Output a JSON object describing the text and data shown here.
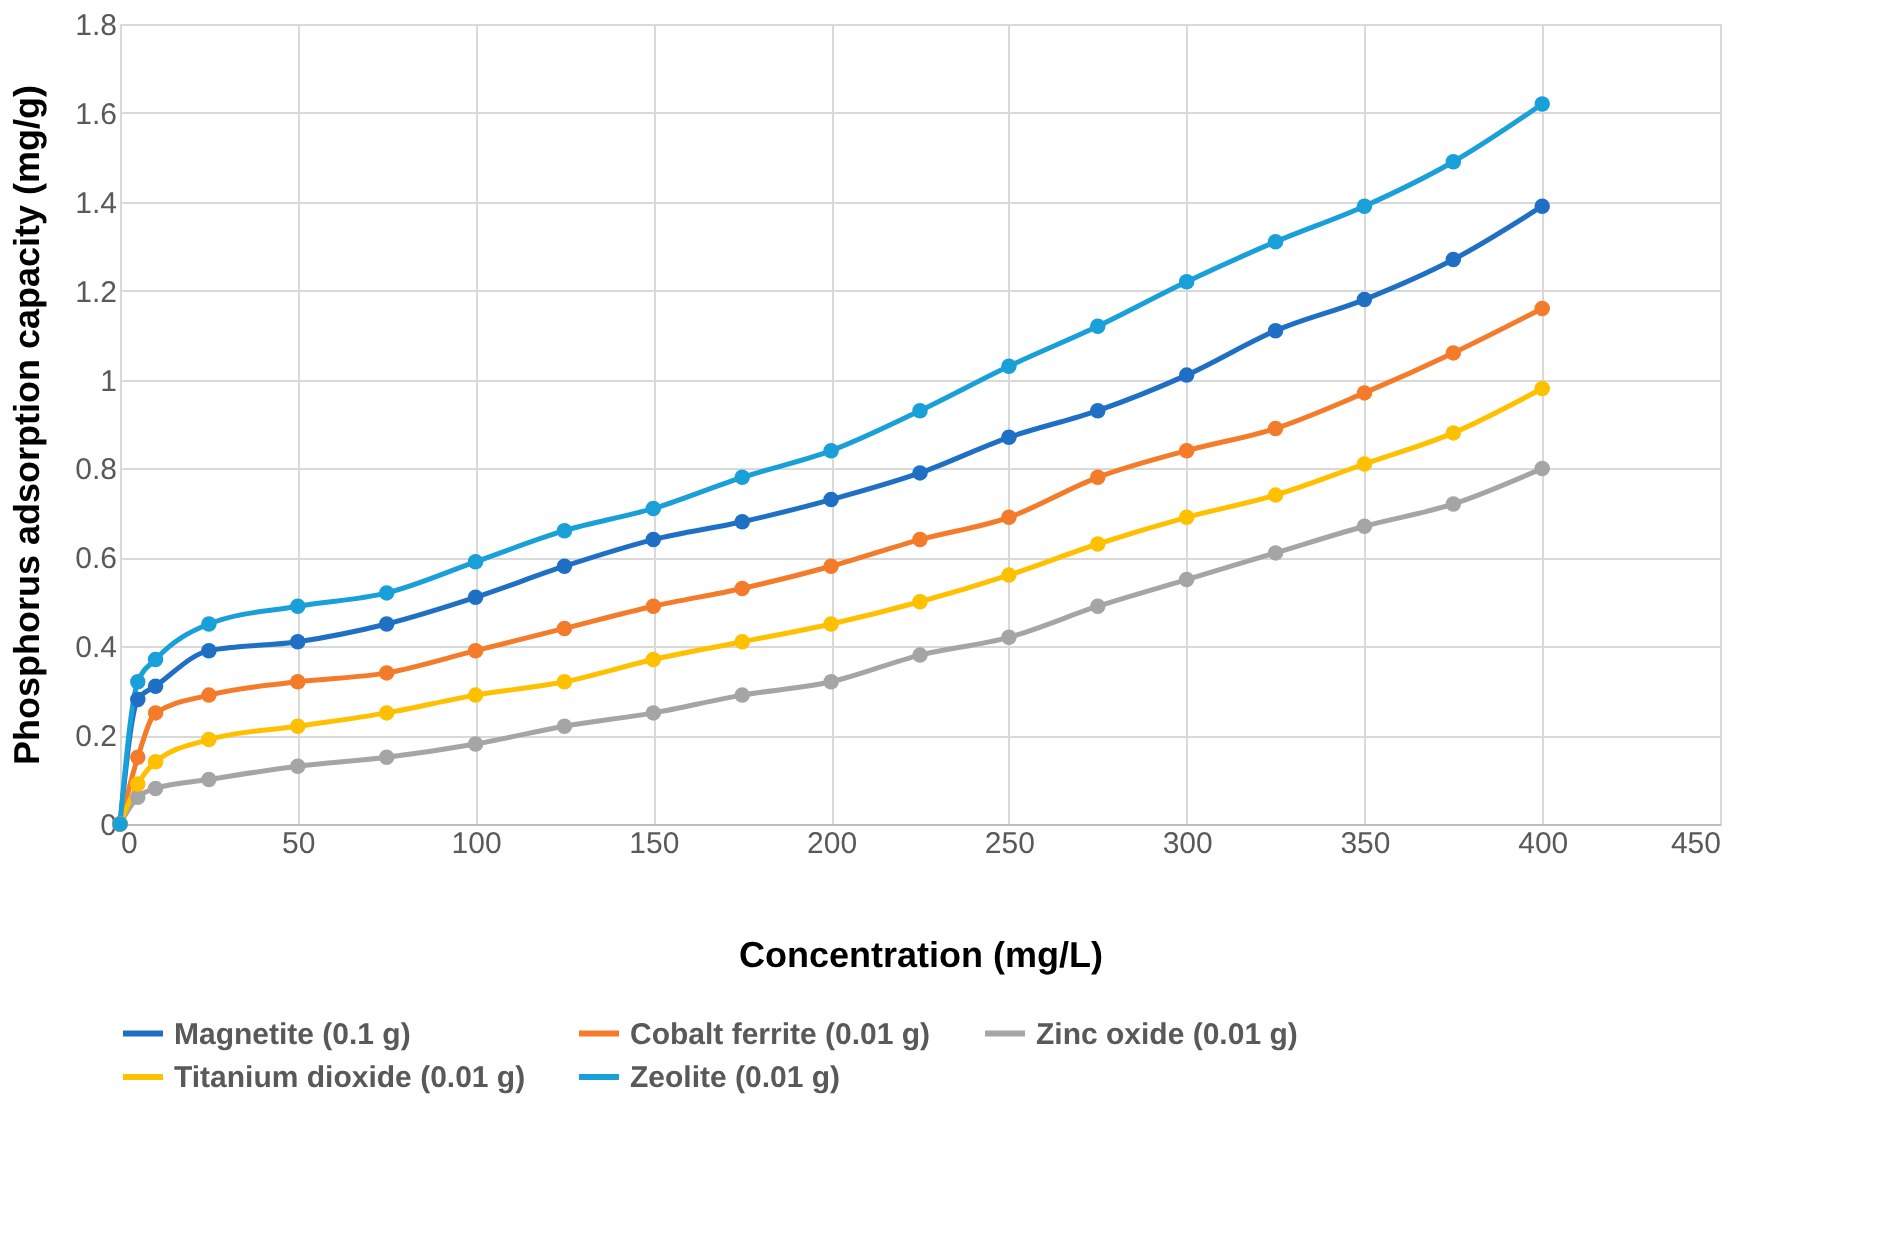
{
  "chart_data": {
    "type": "line",
    "xlabel": "Concentration (mg/L)",
    "ylabel": "Phosphorus adsorption capacity (mg/g)",
    "x": [
      0,
      5,
      10,
      25,
      50,
      75,
      100,
      125,
      150,
      175,
      200,
      225,
      250,
      275,
      300,
      325,
      350,
      375,
      400
    ],
    "series": [
      {
        "name": "Magnetite (0.1 g)",
        "color": "#1f6fc5",
        "values": [
          0,
          0.28,
          0.31,
          0.39,
          0.41,
          0.45,
          0.51,
          0.58,
          0.64,
          0.68,
          0.73,
          0.79,
          0.87,
          0.93,
          1.01,
          1.11,
          1.18,
          1.27,
          1.39
        ]
      },
      {
        "name": "Cobalt ferrite (0.01 g)",
        "color": "#f47b2a",
        "values": [
          0,
          0.15,
          0.25,
          0.29,
          0.32,
          0.34,
          0.39,
          0.44,
          0.49,
          0.53,
          0.58,
          0.64,
          0.69,
          0.78,
          0.84,
          0.89,
          0.97,
          1.06,
          1.16
        ]
      },
      {
        "name": "Zinc oxide (0.01 g)",
        "color": "#a5a5a5",
        "values": [
          0,
          0.06,
          0.08,
          0.1,
          0.13,
          0.15,
          0.18,
          0.22,
          0.25,
          0.29,
          0.32,
          0.38,
          0.42,
          0.49,
          0.55,
          0.61,
          0.67,
          0.72,
          0.8
        ]
      },
      {
        "name": "Titanium dioxide (0.01 g)",
        "color": "#ffc000",
        "values": [
          0,
          0.09,
          0.14,
          0.19,
          0.22,
          0.25,
          0.29,
          0.32,
          0.37,
          0.41,
          0.45,
          0.5,
          0.56,
          0.63,
          0.69,
          0.74,
          0.81,
          0.88,
          0.98
        ]
      },
      {
        "name": "Zeolite (0.01 g)",
        "color": "#1aa0d8",
        "values": [
          0,
          0.32,
          0.37,
          0.45,
          0.49,
          0.52,
          0.59,
          0.66,
          0.71,
          0.78,
          0.84,
          0.93,
          1.03,
          1.12,
          1.22,
          1.31,
          1.39,
          1.49,
          1.62
        ]
      }
    ],
    "xlim": [
      0,
      450
    ],
    "xticks": [
      0,
      50,
      100,
      150,
      200,
      250,
      300,
      350,
      400,
      450
    ],
    "ylim": [
      0,
      1.8
    ],
    "yticks": [
      0,
      0.2,
      0.4,
      0.6,
      0.8,
      1,
      1.2,
      1.4,
      1.6,
      1.8
    ],
    "grid": true,
    "legend": "bottom",
    "marker": "circle",
    "line_style": "solid"
  }
}
